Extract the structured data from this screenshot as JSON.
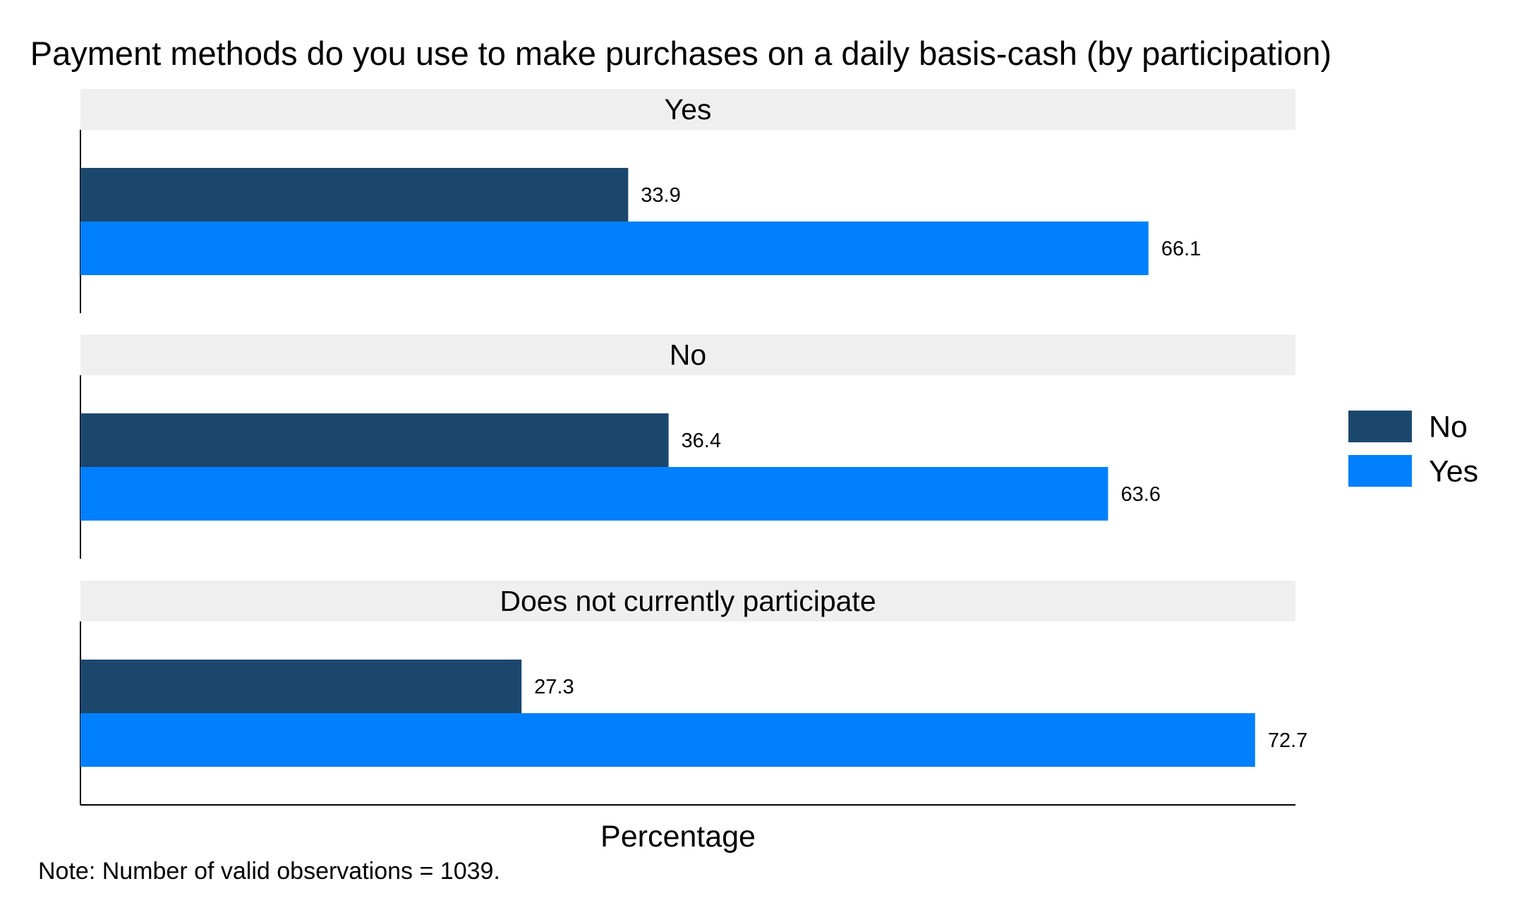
{
  "chart_data": {
    "type": "bar",
    "orientation": "horizontal",
    "title": "Payment methods do you use to make purchases on a daily basis-cash (by participation)",
    "xlabel": "Percentage",
    "note": "Note: Number of valid observations = 1039.",
    "xlim": [
      0,
      100
    ],
    "grid": false,
    "legend_position": "right",
    "series": [
      {
        "name": "No",
        "color": "#1c476d"
      },
      {
        "name": "Yes",
        "color": "#0080ff"
      }
    ],
    "panels": [
      {
        "label": "Yes",
        "values": {
          "No": 33.9,
          "Yes": 66.1
        },
        "value_labels": {
          "No": "33.9",
          "Yes": "66.1"
        }
      },
      {
        "label": "No",
        "values": {
          "No": 36.4,
          "Yes": 63.6
        },
        "value_labels": {
          "No": "36.4",
          "Yes": "63.6"
        }
      },
      {
        "label": "Does not currently participate",
        "values": {
          "No": 27.3,
          "Yes": 72.7
        },
        "value_labels": {
          "No": "27.3",
          "Yes": "72.7"
        }
      }
    ]
  },
  "colors": {
    "strip_background": "#efefef",
    "axis": "#000000",
    "no": "#1c476d",
    "yes": "#0080ff"
  }
}
